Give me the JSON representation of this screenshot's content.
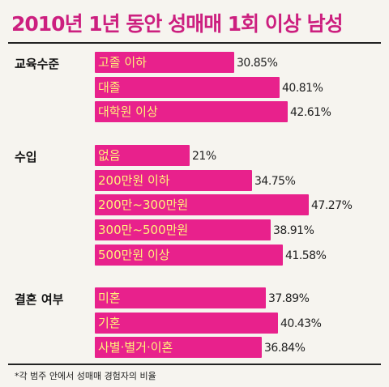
{
  "title": "2010년 1년 동안 성매매 1회 이상 남성",
  "footnote": "*각 범주 안에서 성매매 경험자의 비율",
  "colors": {
    "bar": "#e8218c",
    "bar_label_text": "#fff27a",
    "title": "#cc1f7f",
    "rule": "#222222"
  },
  "chart_data": {
    "type": "bar",
    "orientation": "horizontal",
    "title": "2010년 1년 동안 성매매 1회 이상 남성",
    "unit": "%",
    "groups": [
      {
        "label": "교육수준",
        "categories": [
          "고졸 이하",
          "대졸",
          "대학원 이상"
        ],
        "values": [
          30.85,
          40.81,
          42.61
        ],
        "value_labels": [
          "30.85%",
          "40.81%",
          "42.61%"
        ]
      },
      {
        "label": "수입",
        "categories": [
          "없음",
          "200만원 이하",
          "200만~300만원",
          "300만~500만원",
          "500만원 이상"
        ],
        "values": [
          21,
          34.75,
          47.27,
          38.91,
          41.58
        ],
        "value_labels": [
          "21%",
          "34.75%",
          "47.27%",
          "38.91%",
          "41.58%"
        ]
      },
      {
        "label": "결혼 여부",
        "categories": [
          "미혼",
          "기혼",
          "사별·별거·이혼"
        ],
        "values": [
          37.89,
          40.43,
          36.84
        ],
        "value_labels": [
          "37.89%",
          "40.43%",
          "36.84%"
        ]
      }
    ]
  }
}
